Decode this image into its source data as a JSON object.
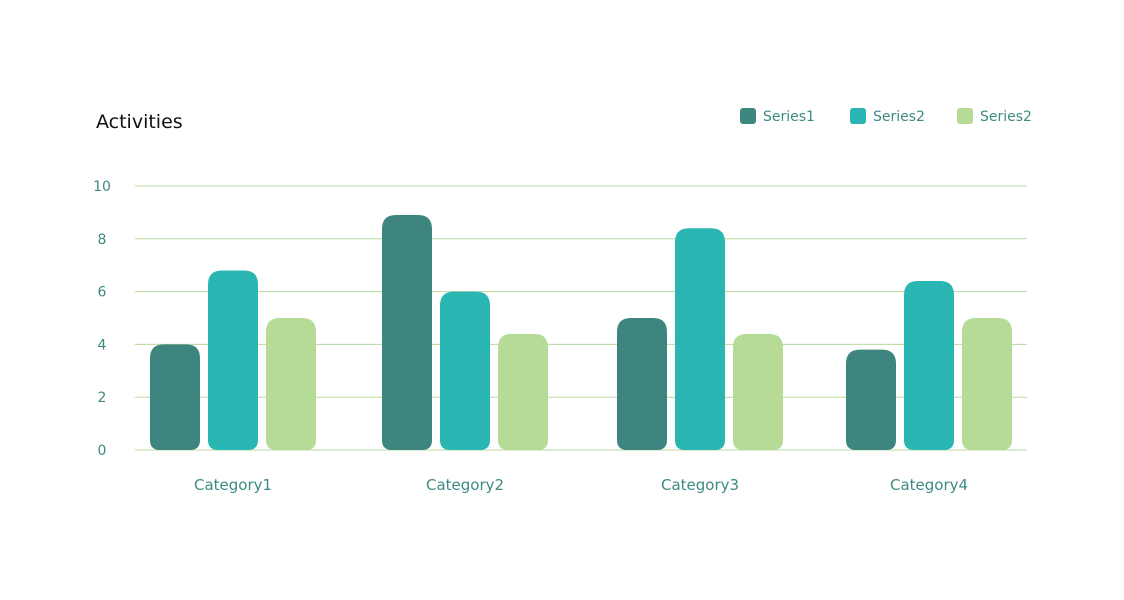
{
  "chart_data": {
    "type": "bar",
    "title": "Activities",
    "categories": [
      "Category1",
      "Category2",
      "Category3",
      "Category4"
    ],
    "series": [
      {
        "name": "Series1",
        "values": [
          4,
          8.9,
          5,
          3.8
        ],
        "color": "#3e857f"
      },
      {
        "name": "Series2",
        "values": [
          6.8,
          6,
          8.4,
          6.4
        ],
        "color": "#29b5b2"
      },
      {
        "name": "Series2",
        "values": [
          5,
          4.4,
          4.4,
          5
        ],
        "color": "#b6db97"
      }
    ],
    "y_ticks": [
      "0",
      "2",
      "4",
      "6",
      "8",
      "10"
    ],
    "ylim": [
      0,
      10
    ],
    "xlabel": "",
    "ylabel": "",
    "grid": true,
    "legend_position": "top-right"
  }
}
